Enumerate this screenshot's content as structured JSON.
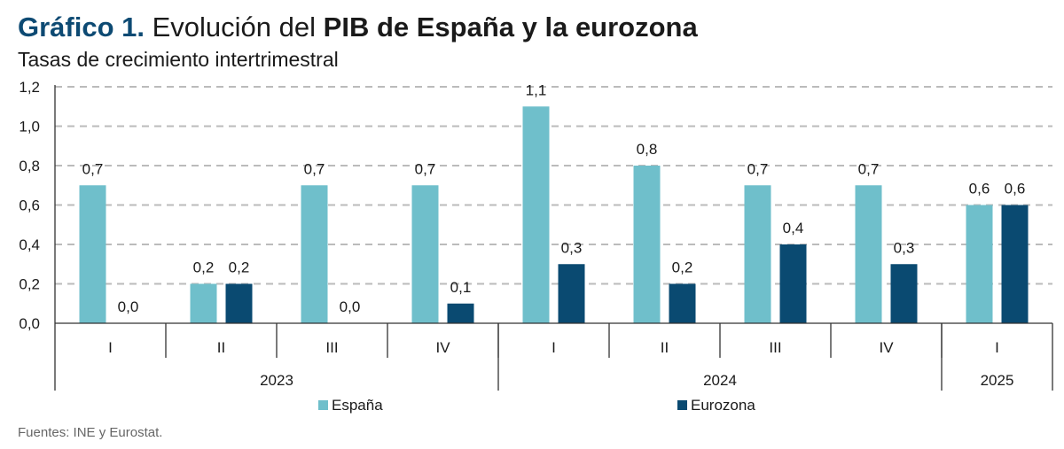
{
  "header": {
    "title_lead": "Gráfico 1.",
    "title_plain": "Evolución del",
    "title_bold": "PIB de España y la eurozona",
    "subtitle": "Tasas de crecimiento intertrimestral"
  },
  "source": {
    "label": "Fuentes:",
    "text": "INE y Eurostat."
  },
  "colors": {
    "espana": "#6fbfcb",
    "eurozona": "#0a4a71",
    "grid": "#bbbbbb",
    "axis": "#333333"
  },
  "chart_data": {
    "type": "bar",
    "categories": [
      "I",
      "II",
      "III",
      "IV",
      "I",
      "II",
      "III",
      "IV",
      "I"
    ],
    "groups": [
      {
        "label": "2023",
        "count": 4
      },
      {
        "label": "2024",
        "count": 4
      },
      {
        "label": "2025",
        "count": 1
      }
    ],
    "series": [
      {
        "name": "España",
        "values": [
          0.7,
          0.2,
          0.7,
          0.7,
          1.1,
          0.8,
          0.7,
          0.7,
          0.6
        ],
        "labels": [
          "0,7",
          "0,2",
          "0,7",
          "0,7",
          "1,1",
          "0,8",
          "0,7",
          "0,7",
          "0,6"
        ]
      },
      {
        "name": "Eurozona",
        "values": [
          0.0,
          0.2,
          0.0,
          0.1,
          0.3,
          0.2,
          0.4,
          0.3,
          0.6
        ],
        "labels": [
          "0,0",
          "0,2",
          "0,0",
          "0,1",
          "0,3",
          "0,2",
          "0,4",
          "0,3",
          "0,6"
        ]
      }
    ],
    "yticks": [
      "0,0",
      "0,2",
      "0,4",
      "0,6",
      "0,8",
      "1,0",
      "1,2"
    ],
    "ylim": [
      0,
      1.2
    ],
    "grid": true,
    "legend": "bottom"
  }
}
